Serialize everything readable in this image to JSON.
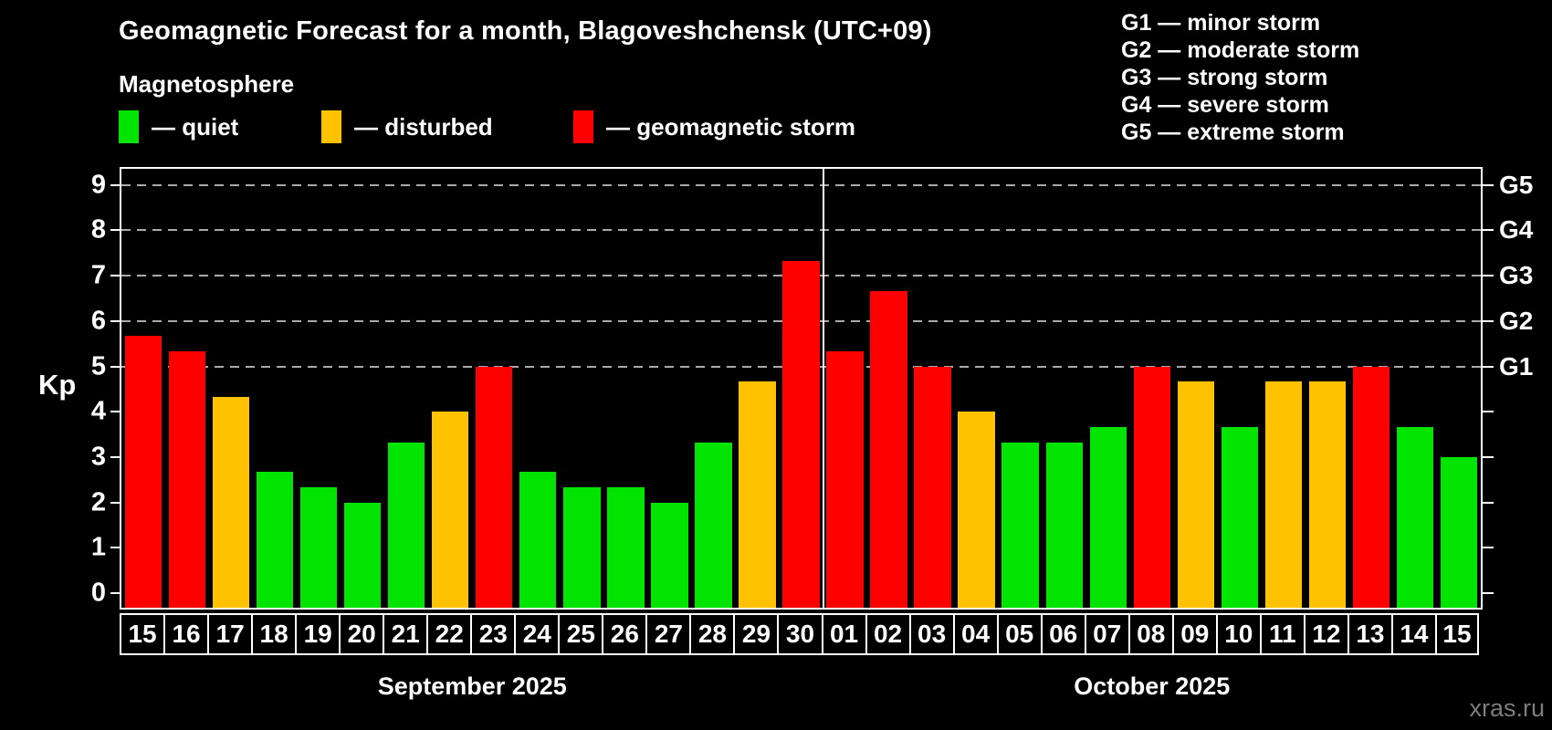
{
  "header": {
    "title": "Geomagnetic Forecast for a month, Blagoveshchensk (UTC+09)",
    "subtitle": "Magnetosphere"
  },
  "legend": [
    {
      "key": "quiet",
      "label": "— quiet",
      "color": "#00e400"
    },
    {
      "key": "disturbed",
      "label": "— disturbed",
      "color": "#ffc200"
    },
    {
      "key": "storm",
      "label": "— geomagnetic storm",
      "color": "#ff0000"
    }
  ],
  "g_scale_legend": [
    "G1 — minor storm",
    "G2 — moderate storm",
    "G3 — strong storm",
    "G4 — severe storm",
    "G5 — extreme storm"
  ],
  "watermark": "xras.ru",
  "chart_data": {
    "type": "bar",
    "ylabel": "Kp",
    "ylim": [
      0,
      9
    ],
    "y_ticks": [
      0,
      1,
      2,
      3,
      4,
      5,
      6,
      7,
      8,
      9
    ],
    "gridlines": [
      5,
      6,
      7,
      8,
      9
    ],
    "grid_style": "dashed, only at storm levels G1-G5",
    "right_axis": [
      {
        "kp": 5,
        "label": "G1"
      },
      {
        "kp": 6,
        "label": "G2"
      },
      {
        "kp": 7,
        "label": "G3"
      },
      {
        "kp": 8,
        "label": "G4"
      },
      {
        "kp": 9,
        "label": "G5"
      }
    ],
    "months": [
      {
        "label": "September 2025",
        "days": [
          "15",
          "16",
          "17",
          "18",
          "19",
          "20",
          "21",
          "22",
          "23",
          "24",
          "25",
          "26",
          "27",
          "28",
          "29",
          "30"
        ]
      },
      {
        "label": "October 2025",
        "days": [
          "01",
          "02",
          "03",
          "04",
          "05",
          "06",
          "07",
          "08",
          "09",
          "10",
          "11",
          "12",
          "13",
          "14",
          "15"
        ]
      }
    ],
    "values": [
      5.67,
      5.33,
      4.33,
      2.67,
      2.33,
      2.0,
      3.33,
      4.0,
      5.0,
      2.67,
      2.33,
      2.33,
      2.0,
      3.33,
      4.67,
      7.33,
      5.33,
      6.67,
      5.0,
      4.0,
      3.33,
      3.33,
      3.67,
      5.0,
      4.67,
      3.67,
      4.67,
      4.67,
      5.0,
      3.67,
      3.0
    ],
    "statuses": [
      "storm",
      "storm",
      "disturbed",
      "quiet",
      "quiet",
      "quiet",
      "quiet",
      "disturbed",
      "storm",
      "quiet",
      "quiet",
      "quiet",
      "quiet",
      "quiet",
      "disturbed",
      "storm",
      "storm",
      "storm",
      "storm",
      "disturbed",
      "quiet",
      "quiet",
      "quiet",
      "storm",
      "disturbed",
      "quiet",
      "disturbed",
      "disturbed",
      "storm",
      "quiet",
      "quiet"
    ],
    "status_colors": {
      "quiet": "#00e400",
      "disturbed": "#ffc200",
      "storm": "#ff0000"
    }
  }
}
